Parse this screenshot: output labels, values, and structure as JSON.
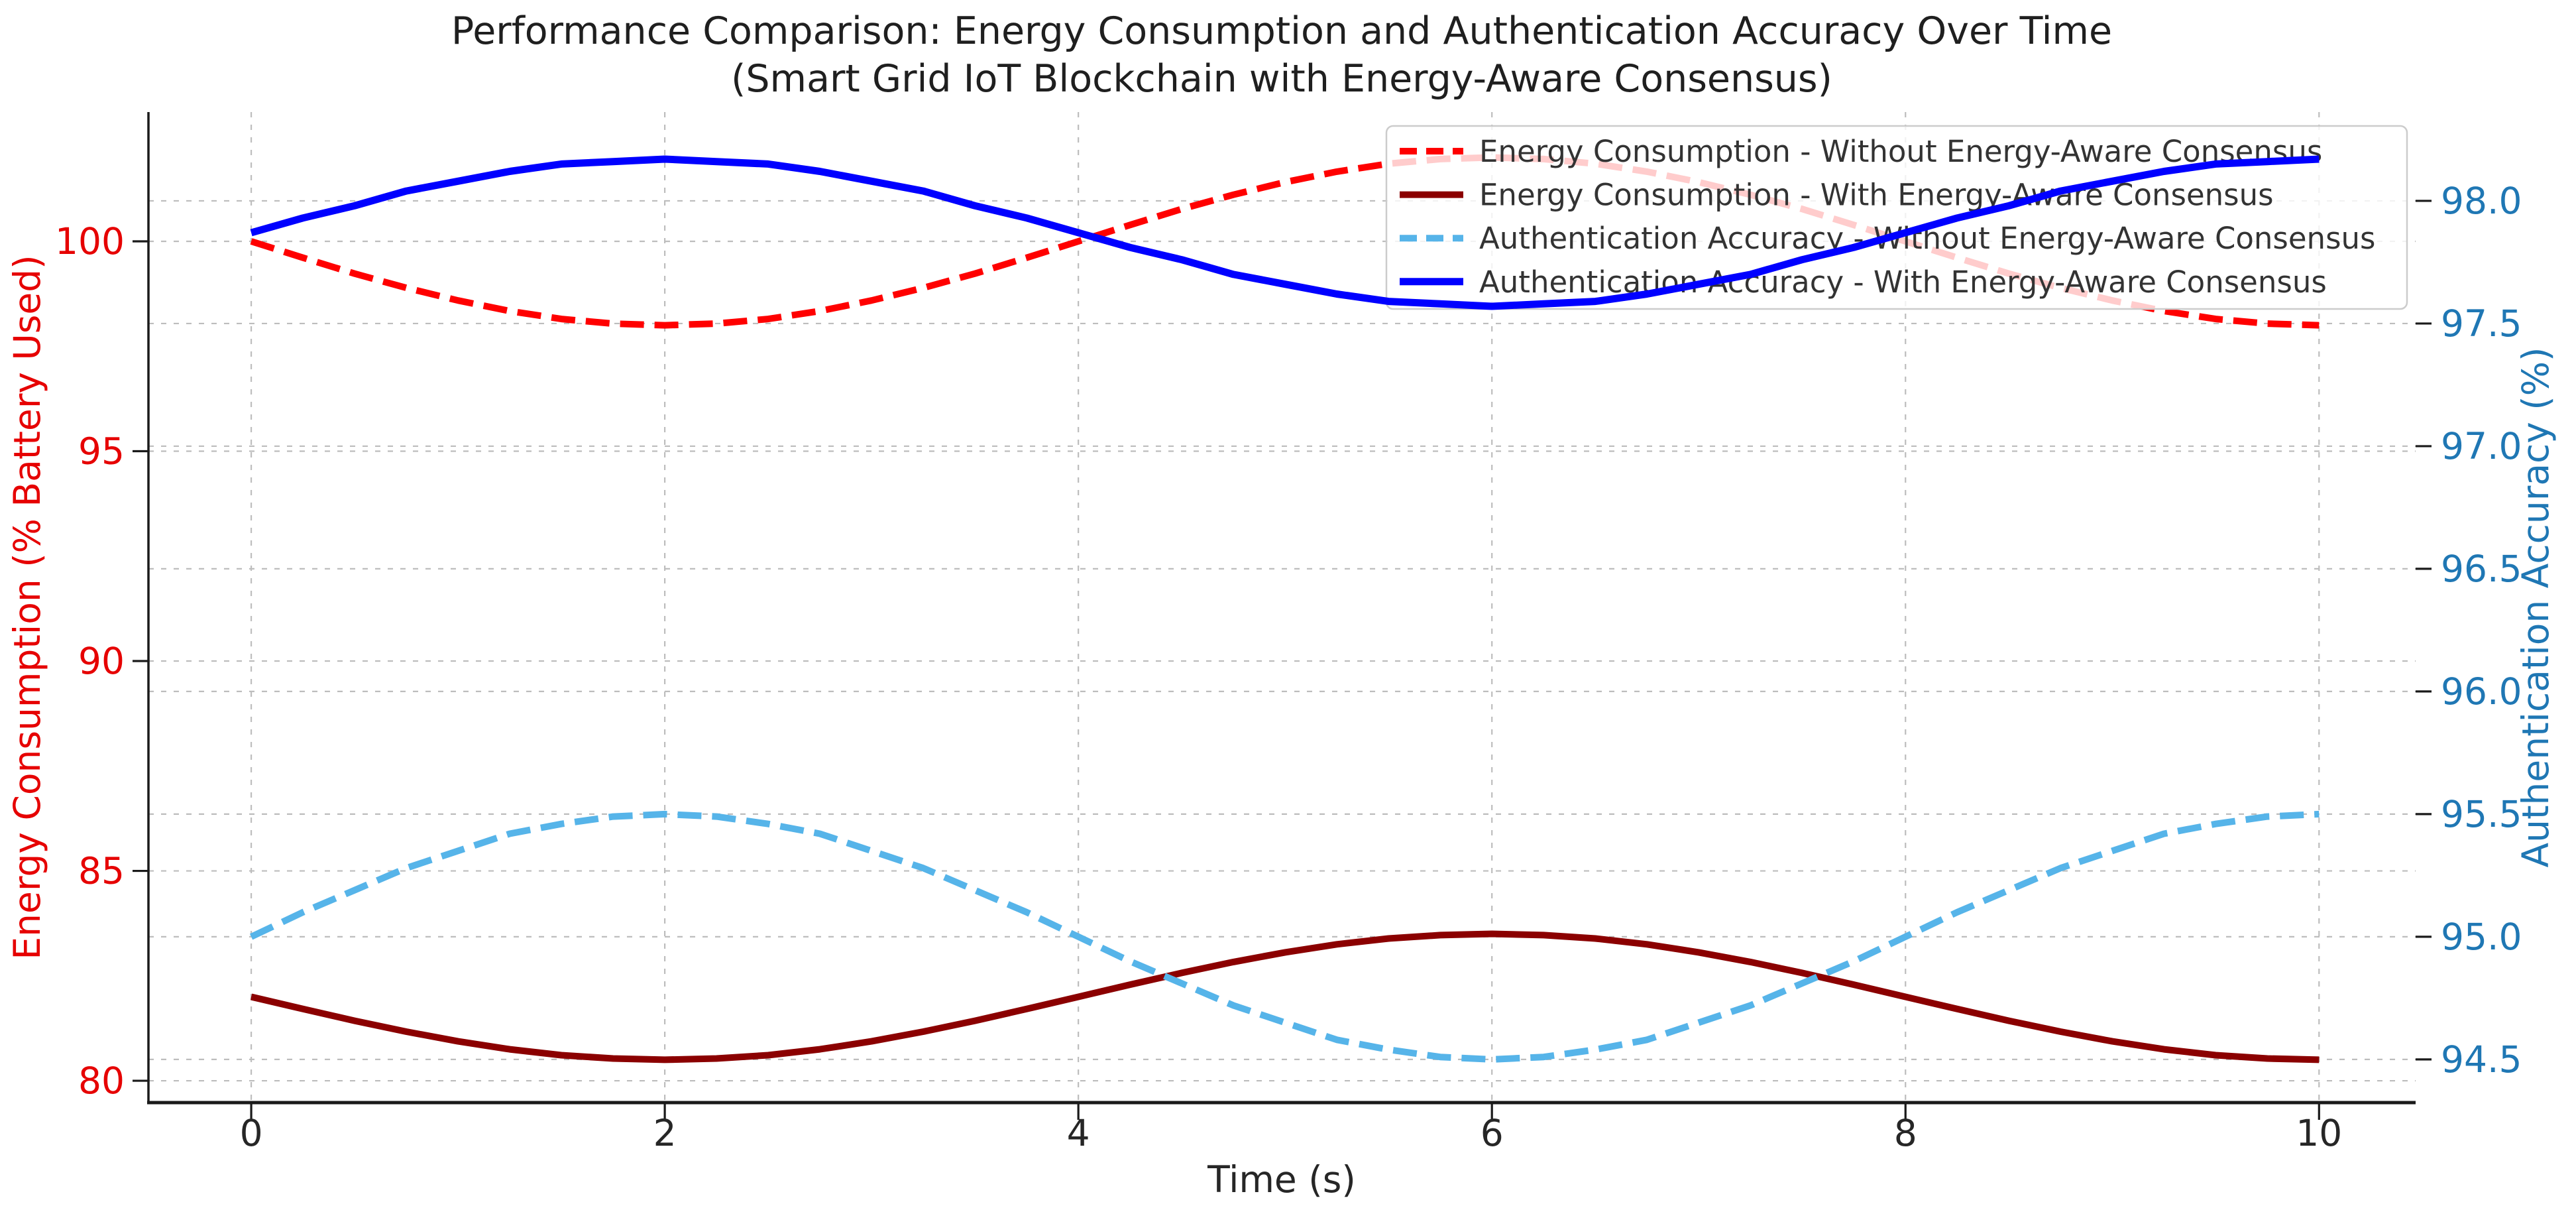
{
  "figure": {
    "background": "#ffffff"
  },
  "chart_data": {
    "type": "line",
    "title": "Performance Comparison: Energy Consumption and Authentication Accuracy Over Time",
    "subtitle": "(Smart Grid IoT Blockchain with Energy-Aware Consensus)",
    "xlabel": "Time (s)",
    "ylabel_left": "Energy Consumption (% Battery Used)",
    "ylabel_right": "Authentication Accuracy (%)",
    "grid": true,
    "legend_position": "upper right",
    "x_ticks": [
      0,
      2,
      4,
      6,
      8,
      10
    ],
    "x_tick_labels": [
      "0",
      "2",
      "4",
      "6",
      "8",
      "10"
    ],
    "x_range": [
      -0.497,
      10.467
    ],
    "y_left_ticks": [
      80,
      85,
      90,
      95,
      100
    ],
    "y_left_tick_labels": [
      "80",
      "85",
      "90",
      "95",
      "100"
    ],
    "y_left_range": [
      79.48,
      103.08
    ],
    "y_right_ticks": [
      94.5,
      95.0,
      95.5,
      96.0,
      96.5,
      97.0,
      97.5,
      98.0
    ],
    "y_right_tick_labels": [
      "94.5",
      "95.0",
      "95.5",
      "96.0",
      "96.5",
      "97.0",
      "97.5",
      "98.0"
    ],
    "y_right_range": [
      94.324,
      98.362
    ],
    "colors": {
      "axis_left": "#e60000",
      "axis_right": "#1f77b4",
      "grid": "#bdbdbd",
      "spine": "#1a1a1a",
      "text": "#262626",
      "legend_border": "#cccccc",
      "legend_fill": "rgba(255,255,255,0.8)"
    },
    "x": [
      0,
      0.25,
      0.5,
      0.75,
      1,
      1.25,
      1.5,
      1.75,
      2,
      2.25,
      2.5,
      2.75,
      3,
      3.25,
      3.5,
      3.75,
      4,
      4.25,
      4.5,
      4.75,
      5,
      5.25,
      5.5,
      5.75,
      6,
      6.25,
      6.5,
      6.75,
      7,
      7.25,
      7.5,
      7.75,
      8,
      8.25,
      8.5,
      8.75,
      9,
      9.25,
      9.5,
      9.75,
      10
    ],
    "series": [
      {
        "name": "Energy Consumption - Without Energy-Aware Consensus",
        "axis": "left",
        "color": "#ff0000",
        "style": "dashed",
        "width": 10,
        "values": [
          100,
          99.61,
          99.23,
          98.89,
          98.59,
          98.34,
          98.15,
          98.04,
          98,
          98.04,
          98.15,
          98.34,
          98.59,
          98.89,
          99.23,
          99.61,
          100,
          100.39,
          100.77,
          101.11,
          101.41,
          101.66,
          101.85,
          101.96,
          102,
          101.96,
          101.85,
          101.66,
          101.41,
          101.11,
          100.77,
          100.39,
          100,
          99.61,
          99.23,
          98.89,
          98.59,
          98.34,
          98.15,
          98.04,
          98
        ]
      },
      {
        "name": "Energy Consumption - With Energy-Aware Consensus",
        "axis": "left",
        "color": "#8b0000",
        "style": "solid",
        "width": 10,
        "values": [
          82,
          81.71,
          81.43,
          81.17,
          80.94,
          80.75,
          80.61,
          80.53,
          80.5,
          80.53,
          80.61,
          80.75,
          80.94,
          81.17,
          81.43,
          81.71,
          82,
          82.29,
          82.57,
          82.83,
          83.06,
          83.25,
          83.39,
          83.47,
          83.5,
          83.47,
          83.39,
          83.25,
          83.06,
          82.83,
          82.57,
          82.29,
          82,
          81.71,
          81.43,
          81.17,
          80.94,
          80.75,
          80.61,
          80.53,
          80.5
        ]
      },
      {
        "name": "Authentication Accuracy - Without Energy-Aware Consensus",
        "axis": "right",
        "color": "#56b4e9",
        "style": "dashed",
        "width": 10,
        "values": [
          95,
          95.1,
          95.19,
          95.28,
          95.35,
          95.42,
          95.46,
          95.49,
          95.5,
          95.49,
          95.46,
          95.42,
          95.35,
          95.28,
          95.19,
          95.1,
          95,
          94.9,
          94.81,
          94.72,
          94.65,
          94.58,
          94.54,
          94.51,
          94.5,
          94.51,
          94.54,
          94.58,
          94.65,
          94.72,
          94.81,
          94.9,
          95,
          95.1,
          95.19,
          95.28,
          95.35,
          95.42,
          95.46,
          95.49,
          95.5
        ]
      },
      {
        "name": "Authentication Accuracy - With Energy-Aware Consensus",
        "axis": "right",
        "color": "#0000ff",
        "style": "solid",
        "width": 11,
        "values": [
          97.87,
          97.93,
          97.98,
          98.04,
          98.08,
          98.12,
          98.15,
          98.16,
          98.17,
          98.16,
          98.15,
          98.12,
          98.08,
          98.04,
          97.98,
          97.93,
          97.87,
          97.81,
          97.76,
          97.7,
          97.66,
          97.62,
          97.59,
          97.58,
          97.57,
          97.58,
          97.59,
          97.62,
          97.66,
          97.7,
          97.76,
          97.81,
          97.87,
          97.93,
          97.98,
          98.04,
          98.08,
          98.12,
          98.15,
          98.16,
          98.17
        ]
      }
    ]
  }
}
